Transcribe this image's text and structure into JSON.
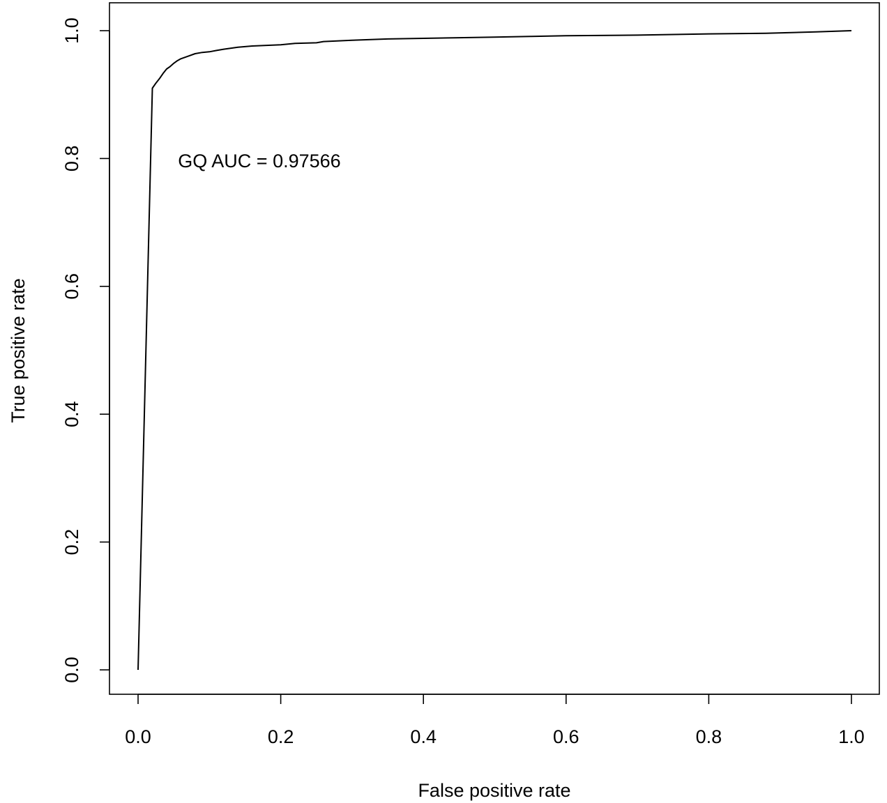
{
  "chart_data": {
    "type": "line",
    "title": "",
    "xlabel": "False positive rate",
    "ylabel": "True positive rate",
    "xlim": [
      0,
      1
    ],
    "ylim": [
      0,
      1
    ],
    "xticks": [
      "0.0",
      "0.2",
      "0.4",
      "0.6",
      "0.8",
      "1.0"
    ],
    "yticks": [
      "0.0",
      "0.2",
      "0.4",
      "0.6",
      "0.8",
      "1.0"
    ],
    "grid": false,
    "legend": "none",
    "line_color": "#000000",
    "annotation": {
      "text": "GQ  AUC =  0.97566",
      "x": 0.056,
      "y": 0.797
    },
    "series": [
      {
        "x": [
          0.0,
          0.02,
          0.025,
          0.03,
          0.035,
          0.04,
          0.045,
          0.05,
          0.055,
          0.06,
          0.07,
          0.08,
          0.09,
          0.1,
          0.11,
          0.12,
          0.14,
          0.16,
          0.18,
          0.2,
          0.22,
          0.25,
          0.26,
          0.3,
          0.35,
          0.4,
          0.45,
          0.5,
          0.55,
          0.6,
          0.7,
          0.8,
          0.88,
          0.95,
          1.0
        ],
        "y": [
          0.0,
          0.91,
          0.918,
          0.925,
          0.933,
          0.94,
          0.944,
          0.949,
          0.953,
          0.956,
          0.96,
          0.964,
          0.966,
          0.967,
          0.969,
          0.971,
          0.974,
          0.976,
          0.977,
          0.978,
          0.98,
          0.981,
          0.983,
          0.985,
          0.987,
          0.988,
          0.989,
          0.99,
          0.991,
          0.992,
          0.993,
          0.995,
          0.996,
          0.998,
          1.0
        ]
      }
    ]
  }
}
